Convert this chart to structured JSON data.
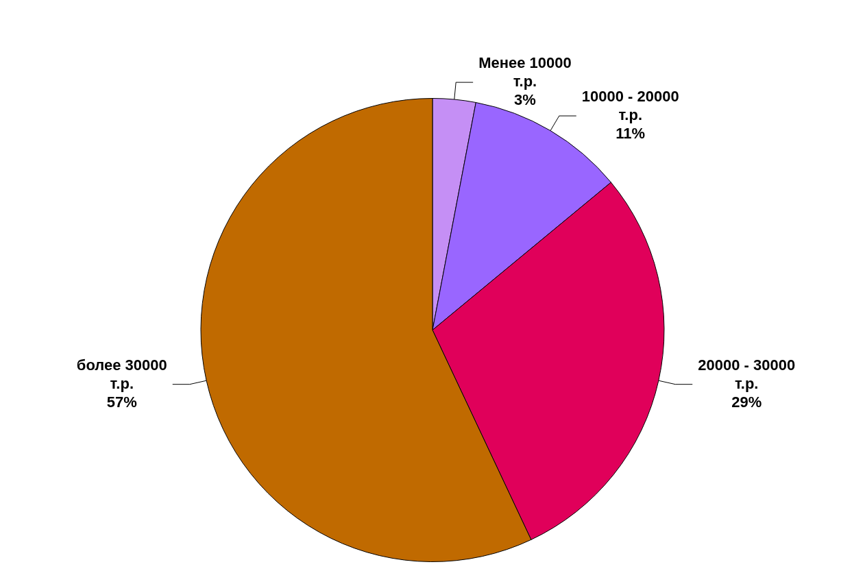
{
  "chart_data": {
    "type": "pie",
    "categories": [
      "Менее 10000 т.р.",
      "10000 - 20000 т.р.",
      "20000 - 30000 т.р.",
      "более 30000 т.р."
    ],
    "values": [
      3,
      11,
      29,
      57
    ],
    "colors": [
      "#c58ff5",
      "#9966ff",
      "#e0005a",
      "#c06a00"
    ],
    "value_labels": [
      "3%",
      "11%",
      "29%",
      "57%"
    ],
    "legend": false
  }
}
